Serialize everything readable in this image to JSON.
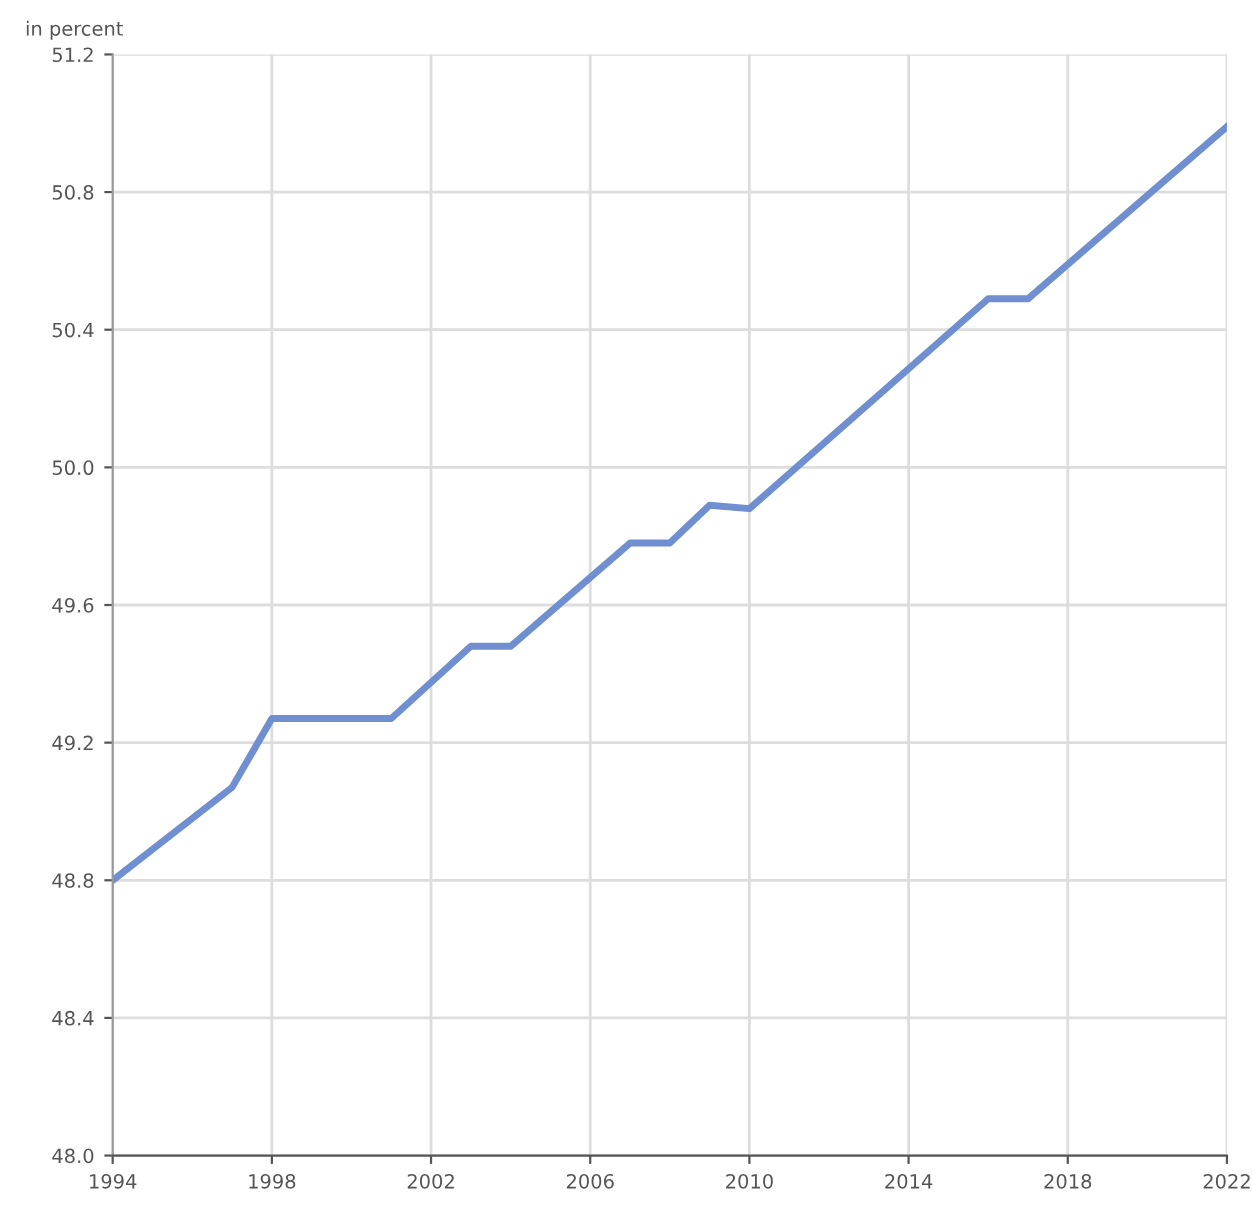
{
  "chart_data": {
    "type": "line",
    "ylabel": "in percent",
    "x": [
      1994,
      1997,
      1998,
      2001,
      2003,
      2004,
      2007,
      2008,
      2009,
      2010,
      2016,
      2017,
      2022
    ],
    "series": [
      {
        "color": "#6f8fd0",
        "values": [
          48.8,
          49.07,
          49.27,
          49.27,
          49.48,
          49.48,
          49.78,
          49.78,
          49.89,
          49.88,
          50.49,
          50.49,
          50.99
        ]
      }
    ],
    "xlim": [
      1994,
      2022
    ],
    "xticks": [
      1994,
      1998,
      2002,
      2006,
      2010,
      2014,
      2018,
      2022
    ],
    "ylim": [
      48.0,
      51.2
    ],
    "yticks": [
      {
        "value": 48.0,
        "label": "48.0"
      },
      48.4,
      48.8,
      49.2,
      49.6,
      {
        "value": 50.0,
        "label": "50.0"
      },
      50.4,
      50.8,
      51.2
    ],
    "grid": true,
    "legend": false,
    "marker": "none",
    "line_style": "solid"
  }
}
